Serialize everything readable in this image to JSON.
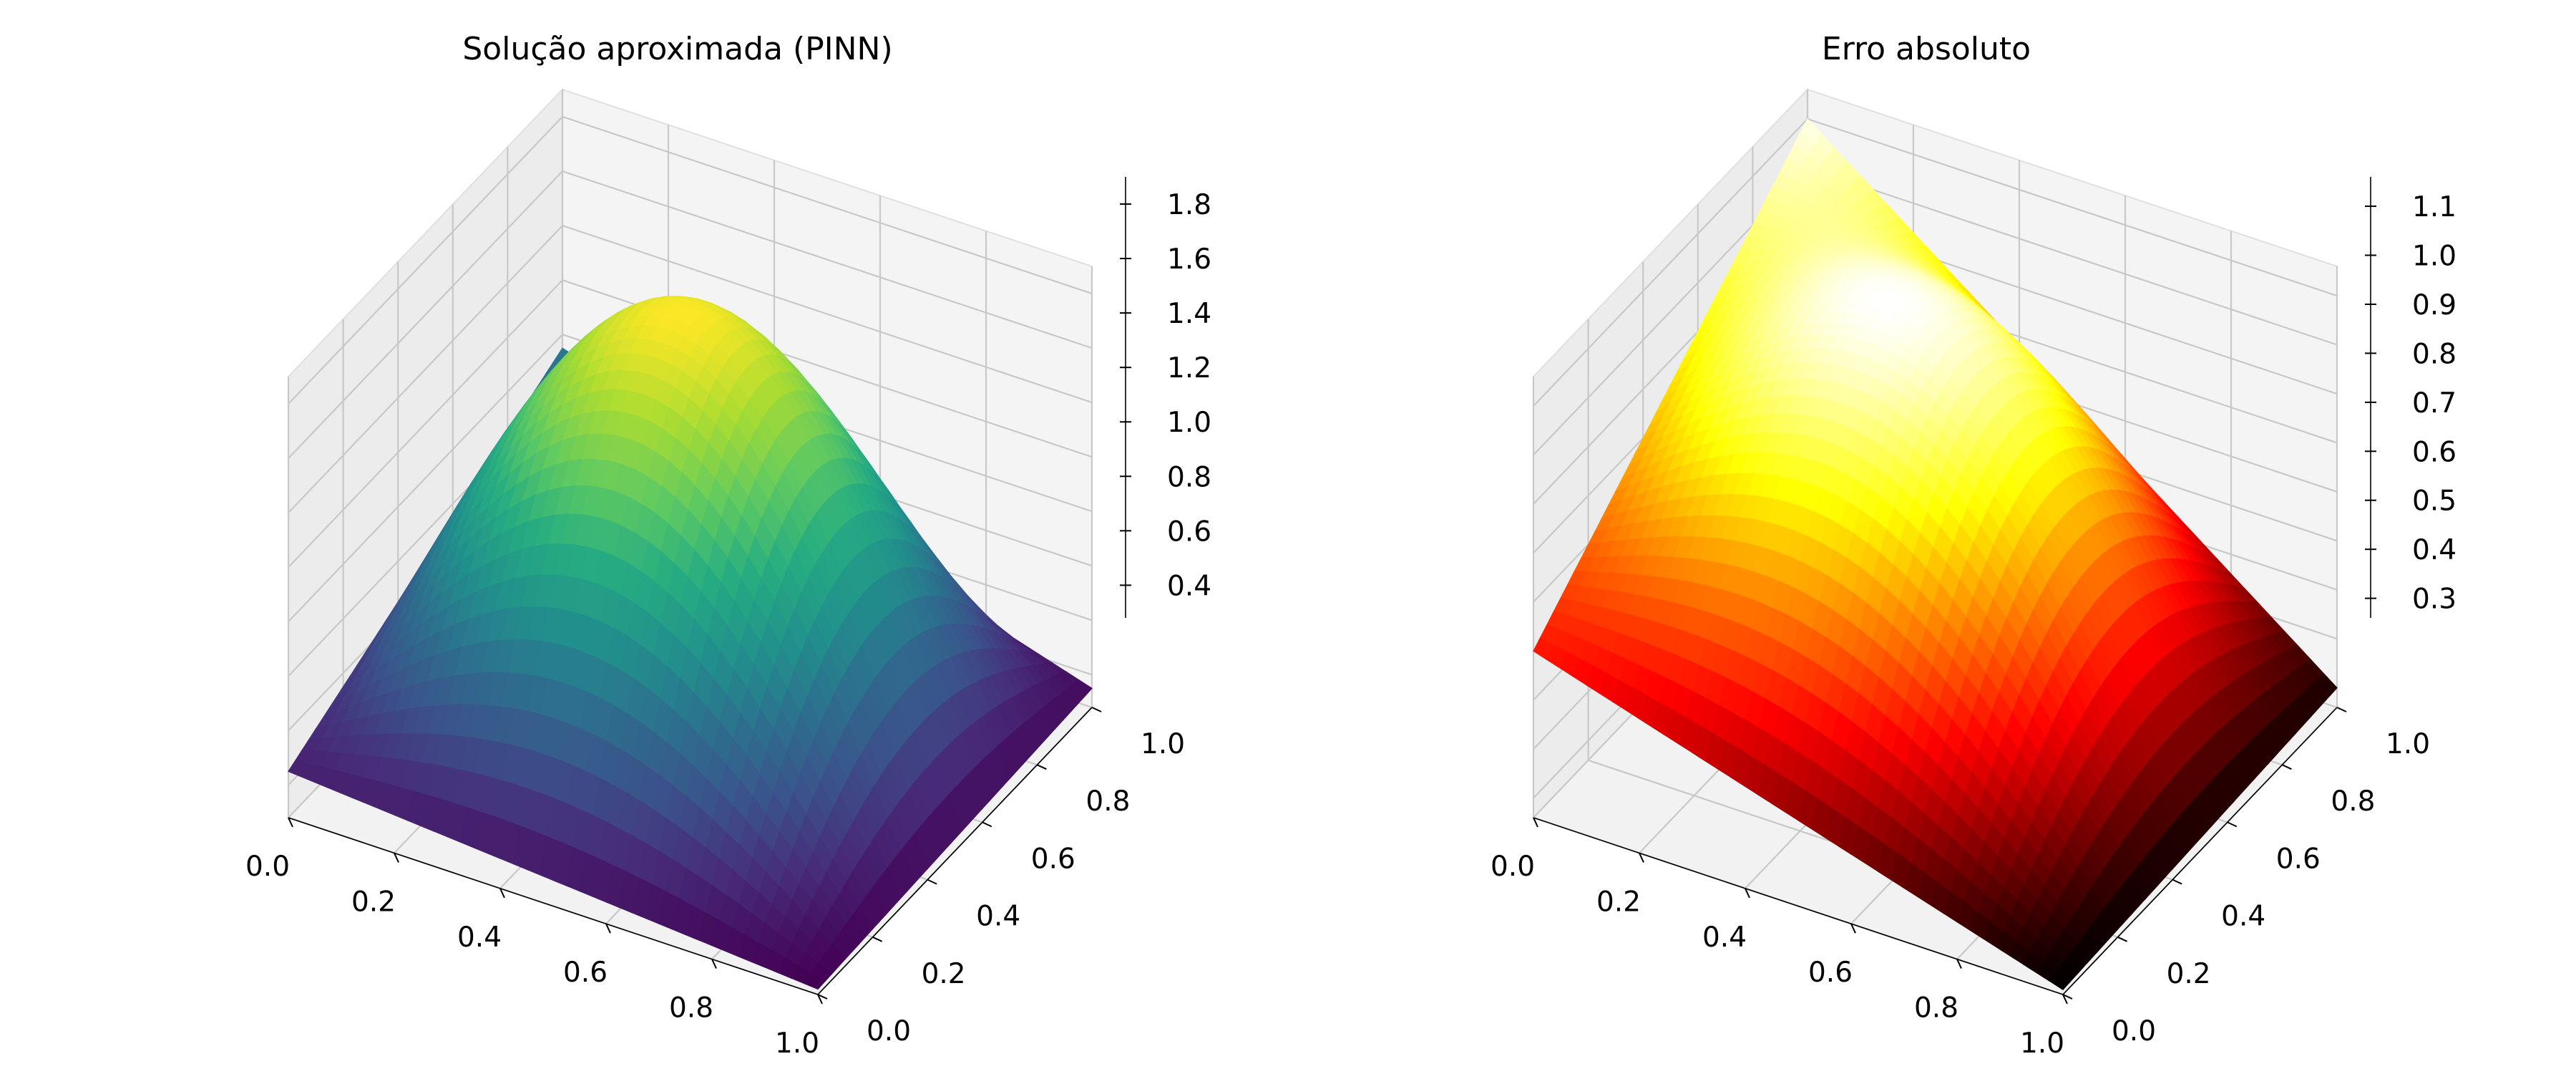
{
  "chart_data": [
    {
      "type": "surface",
      "title": "Solução aproximada (PINN)",
      "colormap": "viridis",
      "xlim": [
        0,
        1
      ],
      "ylim": [
        0,
        1
      ],
      "zlim": [
        0.28,
        1.9
      ],
      "x_ticks": [
        "0.0",
        "0.2",
        "0.4",
        "0.6",
        "0.8",
        "1.0"
      ],
      "y_ticks": [
        "0.0",
        "0.2",
        "0.4",
        "0.6",
        "0.8",
        "1.0"
      ],
      "z_ticks": [
        "0.4",
        "0.6",
        "0.8",
        "1.0",
        "1.2",
        "1.4",
        "1.6",
        "1.8"
      ],
      "grid": true,
      "corner_values": {
        "z_x0_y0": 0.45,
        "z_x1_y0": 0.3,
        "z_x1_y1": 0.35,
        "z_x0_y1": 0.95
      },
      "peak": {
        "x": 0.5,
        "y": 0.5,
        "z": 1.8
      }
    },
    {
      "type": "surface",
      "title": "Erro absoluto",
      "colormap": "hot",
      "xlim": [
        0,
        1
      ],
      "ylim": [
        0,
        1
      ],
      "zlim": [
        0.26,
        1.16
      ],
      "x_ticks": [
        "0.0",
        "0.2",
        "0.4",
        "0.6",
        "0.8",
        "1.0"
      ],
      "y_ticks": [
        "0.0",
        "0.2",
        "0.4",
        "0.6",
        "0.8",
        "1.0"
      ],
      "z_ticks": [
        "0.3",
        "0.4",
        "0.5",
        "0.6",
        "0.7",
        "0.8",
        "0.9",
        "1.0",
        "1.1"
      ],
      "grid": true,
      "corner_values": {
        "z_x0_y0": 0.6,
        "z_x1_y0": 0.27,
        "z_x1_y1": 0.3,
        "z_x0_y1": 1.1
      }
    }
  ]
}
